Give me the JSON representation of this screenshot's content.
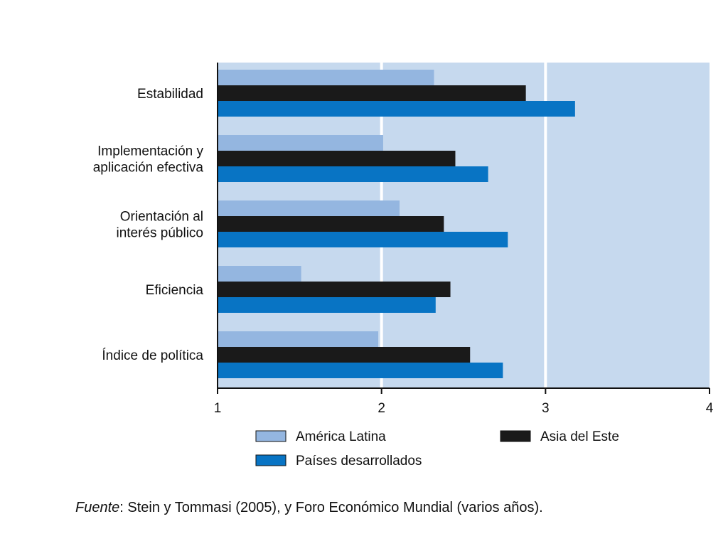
{
  "chart_data": {
    "type": "bar",
    "orientation": "horizontal",
    "categories": [
      [
        "Estabilidad"
      ],
      [
        "Implementación y",
        "aplicación efectiva"
      ],
      [
        "Orientación al",
        "interés público"
      ],
      [
        "Eficiencia"
      ],
      [
        "Índice de política"
      ]
    ],
    "series": [
      {
        "name": "América Latina",
        "color": "#94b6e0",
        "values": [
          2.32,
          2.01,
          2.11,
          1.51,
          1.98
        ]
      },
      {
        "name": "Asia del Este",
        "color": "#1a1a1a",
        "values": [
          2.88,
          2.45,
          2.38,
          2.42,
          2.54
        ]
      },
      {
        "name": "Países desarrollados",
        "color": "#0874c4",
        "values": [
          3.18,
          2.65,
          2.77,
          2.33,
          2.74
        ]
      }
    ],
    "xlim": [
      1,
      4
    ],
    "xticks": [
      1,
      2,
      3,
      4
    ],
    "plot_background": "#c6d9ee",
    "gridlines": "vertical, white",
    "legend_position": "bottom"
  },
  "source": {
    "label": "Fuente",
    "text": ": Stein y Tommasi (2005), y Foro Económico Mundial (varios años)."
  }
}
